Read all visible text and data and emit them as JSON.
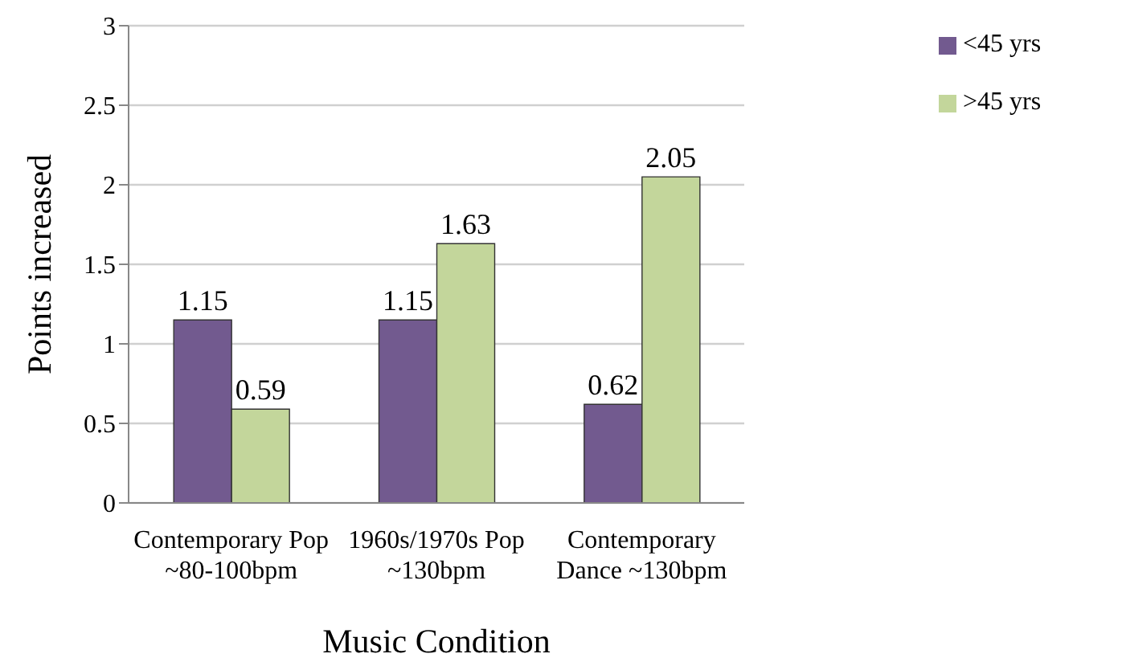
{
  "chart_data": {
    "type": "bar",
    "xlabel": "Music Condition",
    "ylabel": "Points increased",
    "categories": [
      "Contemporary Pop\n~80-100bpm",
      "1960s/1970s Pop\n~130bpm",
      "Contemporary\nDance ~130bpm"
    ],
    "series": [
      {
        "name": "<45 yrs",
        "color": "#725a8f",
        "values": [
          1.15,
          1.15,
          0.62
        ]
      },
      {
        "name": ">45 yrs",
        "color": "#c3d69b",
        "values": [
          0.59,
          1.63,
          2.05
        ]
      }
    ],
    "ylim": [
      0,
      3
    ],
    "yticks": [
      0,
      0.5,
      1,
      1.5,
      2,
      2.5,
      3
    ],
    "grid": "y",
    "legend": "top right",
    "data_labels": true
  }
}
